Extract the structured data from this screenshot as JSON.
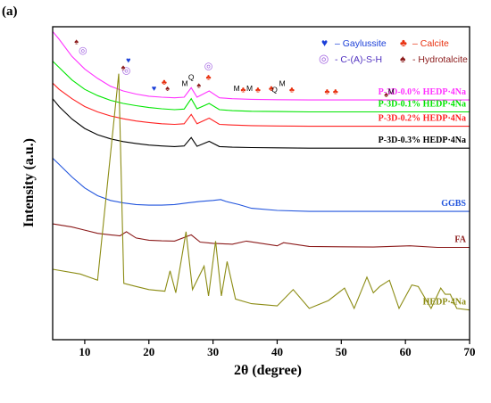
{
  "chart_data": {
    "type": "line",
    "panel_label": "(a)",
    "xlabel": "2θ (degree)",
    "ylabel": "Intensity (a.u.)",
    "xlim": [
      5,
      70
    ],
    "xticks": [
      10,
      20,
      30,
      40,
      50,
      60,
      70
    ],
    "y_tick_labels": false,
    "series": [
      {
        "name": "P-3D-0.0% HEDP·4Na",
        "color": "#ff33ff",
        "x": [
          5,
          6,
          8,
          10,
          12,
          14,
          16,
          18,
          20,
          22,
          24,
          25.5,
          26.6,
          27.5,
          29.4,
          31,
          33,
          36,
          40,
          45,
          50,
          55,
          60,
          65,
          70
        ],
        "y": [
          0.985,
          0.96,
          0.905,
          0.865,
          0.835,
          0.81,
          0.795,
          0.785,
          0.778,
          0.775,
          0.773,
          0.775,
          0.805,
          0.775,
          0.795,
          0.773,
          0.77,
          0.768,
          0.767,
          0.766,
          0.766,
          0.766,
          0.766,
          0.766,
          0.766
        ]
      },
      {
        "name": "P-3D-0.1% HEDP·4Na",
        "color": "#00e600",
        "x": [
          5,
          6,
          8,
          10,
          12,
          14,
          16,
          18,
          20,
          22,
          24,
          25.5,
          26.6,
          27.5,
          29.4,
          31,
          33,
          36,
          40,
          45,
          50,
          55,
          60,
          65,
          70
        ],
        "y": [
          0.89,
          0.87,
          0.83,
          0.8,
          0.78,
          0.765,
          0.755,
          0.748,
          0.742,
          0.738,
          0.735,
          0.737,
          0.77,
          0.738,
          0.755,
          0.735,
          0.732,
          0.73,
          0.729,
          0.728,
          0.728,
          0.728,
          0.728,
          0.728,
          0.728
        ]
      },
      {
        "name": "P-3D-0.2% HEDP·4Na",
        "color": "#ff2222",
        "x": [
          5,
          6,
          8,
          10,
          12,
          14,
          16,
          18,
          20,
          22,
          24,
          25.5,
          26.6,
          27.5,
          29.4,
          31,
          33,
          36,
          40,
          45,
          50,
          55,
          60,
          65,
          70
        ],
        "y": [
          0.82,
          0.8,
          0.77,
          0.745,
          0.728,
          0.715,
          0.706,
          0.699,
          0.694,
          0.69,
          0.688,
          0.69,
          0.72,
          0.69,
          0.708,
          0.688,
          0.686,
          0.684,
          0.683,
          0.682,
          0.682,
          0.682,
          0.682,
          0.682,
          0.682
        ]
      },
      {
        "name": "P-3D-0.3% HEDP·4Na",
        "color": "#000000",
        "x": [
          5,
          6,
          8,
          10,
          12,
          14,
          16,
          18,
          20,
          22,
          24,
          25.5,
          26.6,
          27.5,
          29.4,
          31,
          33,
          36,
          40,
          45,
          50,
          55,
          60,
          65,
          70
        ],
        "y": [
          0.77,
          0.745,
          0.705,
          0.675,
          0.655,
          0.642,
          0.633,
          0.627,
          0.622,
          0.619,
          0.617,
          0.619,
          0.646,
          0.618,
          0.634,
          0.617,
          0.615,
          0.614,
          0.613,
          0.612,
          0.612,
          0.612,
          0.612,
          0.612,
          0.612
        ]
      },
      {
        "name": "GGBS",
        "color": "#2255dd",
        "x": [
          5,
          6,
          8,
          10,
          12,
          14,
          16,
          18,
          20,
          22,
          24,
          26,
          28,
          30,
          31.2,
          32,
          34,
          36,
          40,
          45,
          50,
          55,
          60,
          65,
          70
        ],
        "y": [
          0.58,
          0.56,
          0.52,
          0.485,
          0.46,
          0.445,
          0.437,
          0.432,
          0.43,
          0.43,
          0.432,
          0.437,
          0.442,
          0.445,
          0.448,
          0.442,
          0.432,
          0.42,
          0.413,
          0.41,
          0.41,
          0.41,
          0.41,
          0.41,
          0.41
        ]
      },
      {
        "name": "FA",
        "color": "#8b1a1a",
        "x": [
          5,
          8,
          10,
          12,
          14,
          15.5,
          16.5,
          18,
          20,
          22,
          24,
          26.6,
          28,
          30,
          33,
          35.2,
          40,
          41,
          45,
          50,
          55,
          60.7,
          65,
          70
        ],
        "y": [
          0.37,
          0.36,
          0.35,
          0.34,
          0.335,
          0.332,
          0.345,
          0.325,
          0.318,
          0.316,
          0.315,
          0.335,
          0.312,
          0.308,
          0.305,
          0.315,
          0.3,
          0.31,
          0.298,
          0.297,
          0.296,
          0.3,
          0.295,
          0.295
        ]
      },
      {
        "name": "HEDP·4Na",
        "color": "#8c8c14",
        "x": [
          5,
          9.3,
          12,
          15.3,
          16.1,
          18,
          20,
          22.5,
          23.3,
          24.2,
          25.8,
          26.8,
          28.6,
          29.3,
          30.4,
          31.3,
          32.2,
          33.5,
          36,
          40,
          42.5,
          45,
          48,
          50.5,
          52,
          54,
          55,
          56,
          57.5,
          59,
          61,
          62,
          64,
          65.5,
          66.2,
          67,
          68,
          70
        ],
        "y": [
          0.225,
          0.21,
          0.19,
          0.85,
          0.18,
          0.17,
          0.16,
          0.155,
          0.22,
          0.15,
          0.345,
          0.16,
          0.235,
          0.14,
          0.315,
          0.14,
          0.25,
          0.13,
          0.115,
          0.108,
          0.16,
          0.1,
          0.125,
          0.165,
          0.1,
          0.2,
          0.15,
          0.17,
          0.19,
          0.1,
          0.175,
          0.17,
          0.1,
          0.165,
          0.145,
          0.145,
          0.1,
          0.095
        ]
      }
    ],
    "annotations": [
      {
        "text": "M",
        "x": 25.6,
        "y": 0.81
      },
      {
        "text": "Q",
        "x": 26.6,
        "y": 0.83
      },
      {
        "text": "M",
        "x": 33.7,
        "y": 0.795
      },
      {
        "text": "M",
        "x": 35.7,
        "y": 0.795
      },
      {
        "text": "Q",
        "x": 39.6,
        "y": 0.79
      },
      {
        "text": "M",
        "x": 40.8,
        "y": 0.81
      },
      {
        "text": "M",
        "x": 57.8,
        "y": 0.785
      }
    ],
    "legend": {
      "placement": "top-right",
      "items": [
        {
          "symbol": "♥",
          "color": "#1b3fd8",
          "label": "– Gaylussite"
        },
        {
          "symbol": "♣",
          "color": "#e8300f",
          "label": "– Calcite"
        },
        {
          "symbol": "◎",
          "color": "#a060e0",
          "label": "- C-(A)-S-H"
        },
        {
          "symbol": "♠",
          "color": "#8b1a1a",
          "label": "- Hydrotalcite"
        }
      ]
    }
  }
}
